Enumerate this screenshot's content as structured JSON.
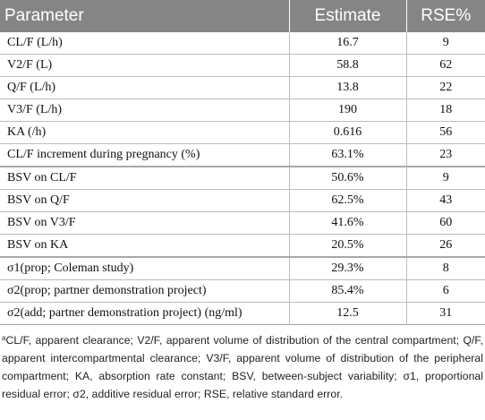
{
  "table": {
    "headers": [
      "Parameter",
      "Estimate",
      "RSE%"
    ],
    "rows": [
      {
        "parameter": "CL/F (L/h)",
        "estimate": "16.7",
        "rse": "9"
      },
      {
        "parameter": "V2/F (L)",
        "estimate": "58.8",
        "rse": "62"
      },
      {
        "parameter": "Q/F (L/h)",
        "estimate": "13.8",
        "rse": "22"
      },
      {
        "parameter": "V3/F (L/h)",
        "estimate": "190",
        "rse": "18"
      },
      {
        "parameter": "KA (/h)",
        "estimate": "0.616",
        "rse": "56"
      },
      {
        "parameter": "CL/F increment during pregnancy (%)",
        "estimate": "63.1%",
        "rse": "23"
      },
      {
        "parameter": "BSV on CL/F",
        "estimate": "50.6%",
        "rse": "9"
      },
      {
        "parameter": "BSV on Q/F",
        "estimate": "62.5%",
        "rse": "43"
      },
      {
        "parameter": "BSV on V3/F",
        "estimate": "41.6%",
        "rse": "60"
      },
      {
        "parameter": "BSV on KA",
        "estimate": "20.5%",
        "rse": "26"
      },
      {
        "parameter": "σ1(prop; Coleman study)",
        "estimate": "29.3%",
        "rse": "8"
      },
      {
        "parameter": "σ2(prop; partner demonstration project)",
        "estimate": "85.4%",
        "rse": "6"
      },
      {
        "parameter": "σ2(add; partner demonstration project) (ng/ml)",
        "estimate": "12.5",
        "rse": "31"
      }
    ]
  },
  "footnote": {
    "marker": "a",
    "text": "CL/F, apparent clearance; V2/F, apparent volume of distribution of the central compartment; Q/F, apparent intercompartmental clearance; V3/F, apparent volume of distribution of the peripheral compartment; KA, absorption rate constant; BSV, between-subject variability; σ1, proportional residual error; σ2, additive residual error; RSE, relative standard error."
  }
}
